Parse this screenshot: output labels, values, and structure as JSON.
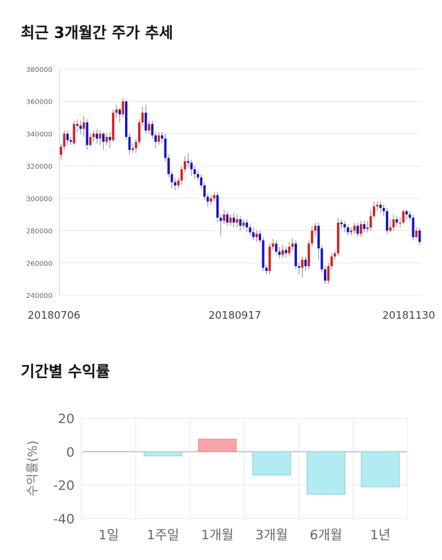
{
  "sections": {
    "price_trend_title": "최근 3개월간 주가 추세",
    "returns_title": "기간별 수익률"
  },
  "colors": {
    "up": "#d61f1f",
    "down": "#1010cc",
    "wick": "#888888",
    "grid": "#e6e6e6",
    "axis": "#cccccc",
    "bar_positive": "#f8a5aa",
    "bar_negative": "#b3ebf2",
    "bar_negative_edge": "#8ccfd9"
  },
  "chart_data": [
    {
      "type": "candlestick",
      "title": "최근 3개월간 주가 추세",
      "ylim": [
        240000,
        380000
      ],
      "y_ticks": [
        "380000",
        "360000",
        "340000",
        "320000",
        "300000",
        "280000",
        "260000",
        "240000"
      ],
      "x_tick_labels": [
        "20180706",
        "20180917",
        "20181130"
      ],
      "candles": [
        [
          327000,
          332000,
          324000,
          334000
        ],
        [
          332000,
          340000,
          330000,
          342000
        ],
        [
          340000,
          336000,
          333000,
          342000
        ],
        [
          336000,
          335000,
          333000,
          338000
        ],
        [
          334000,
          346000,
          333000,
          348000
        ],
        [
          346000,
          345000,
          341000,
          349000
        ],
        [
          345000,
          343000,
          340000,
          348000
        ],
        [
          343000,
          347000,
          338000,
          351000
        ],
        [
          347000,
          333000,
          330000,
          349000
        ],
        [
          333000,
          338000,
          332000,
          340000
        ],
        [
          338000,
          340000,
          335000,
          342000
        ],
        [
          340000,
          337000,
          334000,
          343000
        ],
        [
          337000,
          340000,
          333000,
          342000
        ],
        [
          340000,
          335000,
          330000,
          341000
        ],
        [
          335000,
          338000,
          333000,
          340000
        ],
        [
          338000,
          336000,
          331000,
          341000
        ],
        [
          336000,
          353000,
          335000,
          355000
        ],
        [
          353000,
          355000,
          350000,
          358000
        ],
        [
          355000,
          352000,
          347000,
          356000
        ],
        [
          352000,
          360000,
          350000,
          362000
        ],
        [
          360000,
          338000,
          336000,
          361000
        ],
        [
          338000,
          330000,
          327000,
          340000
        ],
        [
          330000,
          331000,
          328000,
          334000
        ],
        [
          331000,
          335000,
          328000,
          337000
        ],
        [
          335000,
          347000,
          333000,
          349000
        ],
        [
          347000,
          353000,
          345000,
          357000
        ],
        [
          353000,
          342000,
          340000,
          358000
        ],
        [
          342000,
          346000,
          340000,
          348000
        ],
        [
          346000,
          339000,
          337000,
          348000
        ],
        [
          339000,
          335000,
          331000,
          341000
        ],
        [
          335000,
          339000,
          333000,
          341000
        ],
        [
          339000,
          337000,
          334000,
          341000
        ],
        [
          337000,
          325000,
          323000,
          340000
        ],
        [
          325000,
          315000,
          313000,
          327000
        ],
        [
          315000,
          310000,
          306000,
          317000
        ],
        [
          310000,
          308000,
          305000,
          312000
        ],
        [
          308000,
          311000,
          306000,
          313000
        ],
        [
          311000,
          318000,
          309000,
          320000
        ],
        [
          318000,
          323000,
          316000,
          326000
        ],
        [
          323000,
          322000,
          319000,
          328000
        ],
        [
          322000,
          318000,
          314000,
          324000
        ],
        [
          318000,
          315000,
          312000,
          320000
        ],
        [
          315000,
          313000,
          311000,
          317000
        ],
        [
          313000,
          308000,
          306000,
          315000
        ],
        [
          308000,
          301000,
          299000,
          310000
        ],
        [
          301000,
          298000,
          295000,
          303000
        ],
        [
          298000,
          300000,
          296000,
          302000
        ],
        [
          300000,
          302000,
          298000,
          304000
        ],
        [
          302000,
          288000,
          285000,
          304000
        ],
        [
          288000,
          286000,
          277000,
          290000
        ],
        [
          286000,
          290000,
          284000,
          293000
        ],
        [
          290000,
          285000,
          283000,
          292000
        ],
        [
          285000,
          288000,
          283000,
          290000
        ],
        [
          288000,
          285000,
          282000,
          291000
        ],
        [
          285000,
          287000,
          282000,
          290000
        ],
        [
          287000,
          283000,
          280000,
          289000
        ],
        [
          283000,
          285000,
          281000,
          287000
        ],
        [
          285000,
          282000,
          279000,
          287000
        ],
        [
          282000,
          279000,
          277000,
          284000
        ],
        [
          279000,
          276000,
          274000,
          282000
        ],
        [
          276000,
          278000,
          273000,
          280000
        ],
        [
          278000,
          274000,
          272000,
          280000
        ],
        [
          274000,
          257000,
          255000,
          276000
        ],
        [
          257000,
          255000,
          253000,
          259000
        ],
        [
          255000,
          270000,
          253000,
          272000
        ],
        [
          270000,
          272000,
          268000,
          275000
        ],
        [
          272000,
          267000,
          265000,
          274000
        ],
        [
          267000,
          265000,
          263000,
          270000
        ],
        [
          265000,
          268000,
          263000,
          271000
        ],
        [
          268000,
          266000,
          263000,
          270000
        ],
        [
          266000,
          270000,
          264000,
          273000
        ],
        [
          270000,
          272000,
          268000,
          275000
        ],
        [
          272000,
          258000,
          256000,
          274000
        ],
        [
          258000,
          257000,
          253000,
          260000
        ],
        [
          257000,
          262000,
          251000,
          264000
        ],
        [
          262000,
          258000,
          255000,
          264000
        ],
        [
          258000,
          272000,
          256000,
          274000
        ],
        [
          272000,
          280000,
          270000,
          283000
        ],
        [
          280000,
          283000,
          276000,
          285000
        ],
        [
          283000,
          269000,
          262000,
          285000
        ],
        [
          269000,
          256000,
          254000,
          271000
        ],
        [
          256000,
          249000,
          247000,
          258000
        ],
        [
          249000,
          258000,
          247000,
          260000
        ],
        [
          258000,
          264000,
          256000,
          266000
        ],
        [
          264000,
          266000,
          262000,
          268000
        ],
        [
          266000,
          285000,
          264000,
          288000
        ],
        [
          285000,
          284000,
          281000,
          287000
        ],
        [
          284000,
          282000,
          279000,
          286000
        ],
        [
          282000,
          279000,
          277000,
          284000
        ],
        [
          279000,
          280000,
          277000,
          282000
        ],
        [
          280000,
          283000,
          278000,
          285000
        ],
        [
          283000,
          278000,
          276000,
          285000
        ],
        [
          278000,
          284000,
          276000,
          286000
        ],
        [
          284000,
          281000,
          279000,
          286000
        ],
        [
          281000,
          282000,
          279000,
          286000
        ],
        [
          282000,
          289000,
          280000,
          293000
        ],
        [
          289000,
          295000,
          288000,
          298000
        ],
        [
          295000,
          296000,
          292000,
          298000
        ],
        [
          296000,
          294000,
          291000,
          298000
        ],
        [
          294000,
          292000,
          289000,
          296000
        ],
        [
          292000,
          280000,
          278000,
          294000
        ],
        [
          280000,
          282000,
          279000,
          287000
        ],
        [
          282000,
          287000,
          280000,
          290000
        ],
        [
          287000,
          285000,
          283000,
          289000
        ],
        [
          285000,
          285000,
          282000,
          288000
        ],
        [
          285000,
          292000,
          284000,
          293000
        ],
        [
          292000,
          290000,
          287000,
          293000
        ],
        [
          290000,
          288000,
          286000,
          292000
        ],
        [
          288000,
          276000,
          274000,
          290000
        ],
        [
          276000,
          280000,
          275000,
          282000
        ],
        [
          280000,
          273000,
          271000,
          282000
        ]
      ]
    },
    {
      "type": "bar",
      "title": "기간별 수익률",
      "ylabel": "수익률(%)",
      "ylim": [
        -40,
        20
      ],
      "y_ticks": [
        "20",
        "0",
        "-20",
        "-40"
      ],
      "categories": [
        "1일",
        "1주일",
        "1개월",
        "3개월",
        "6개월",
        "1년"
      ],
      "values": [
        0,
        -2.5,
        7.5,
        -14,
        -25.5,
        -21
      ]
    }
  ]
}
